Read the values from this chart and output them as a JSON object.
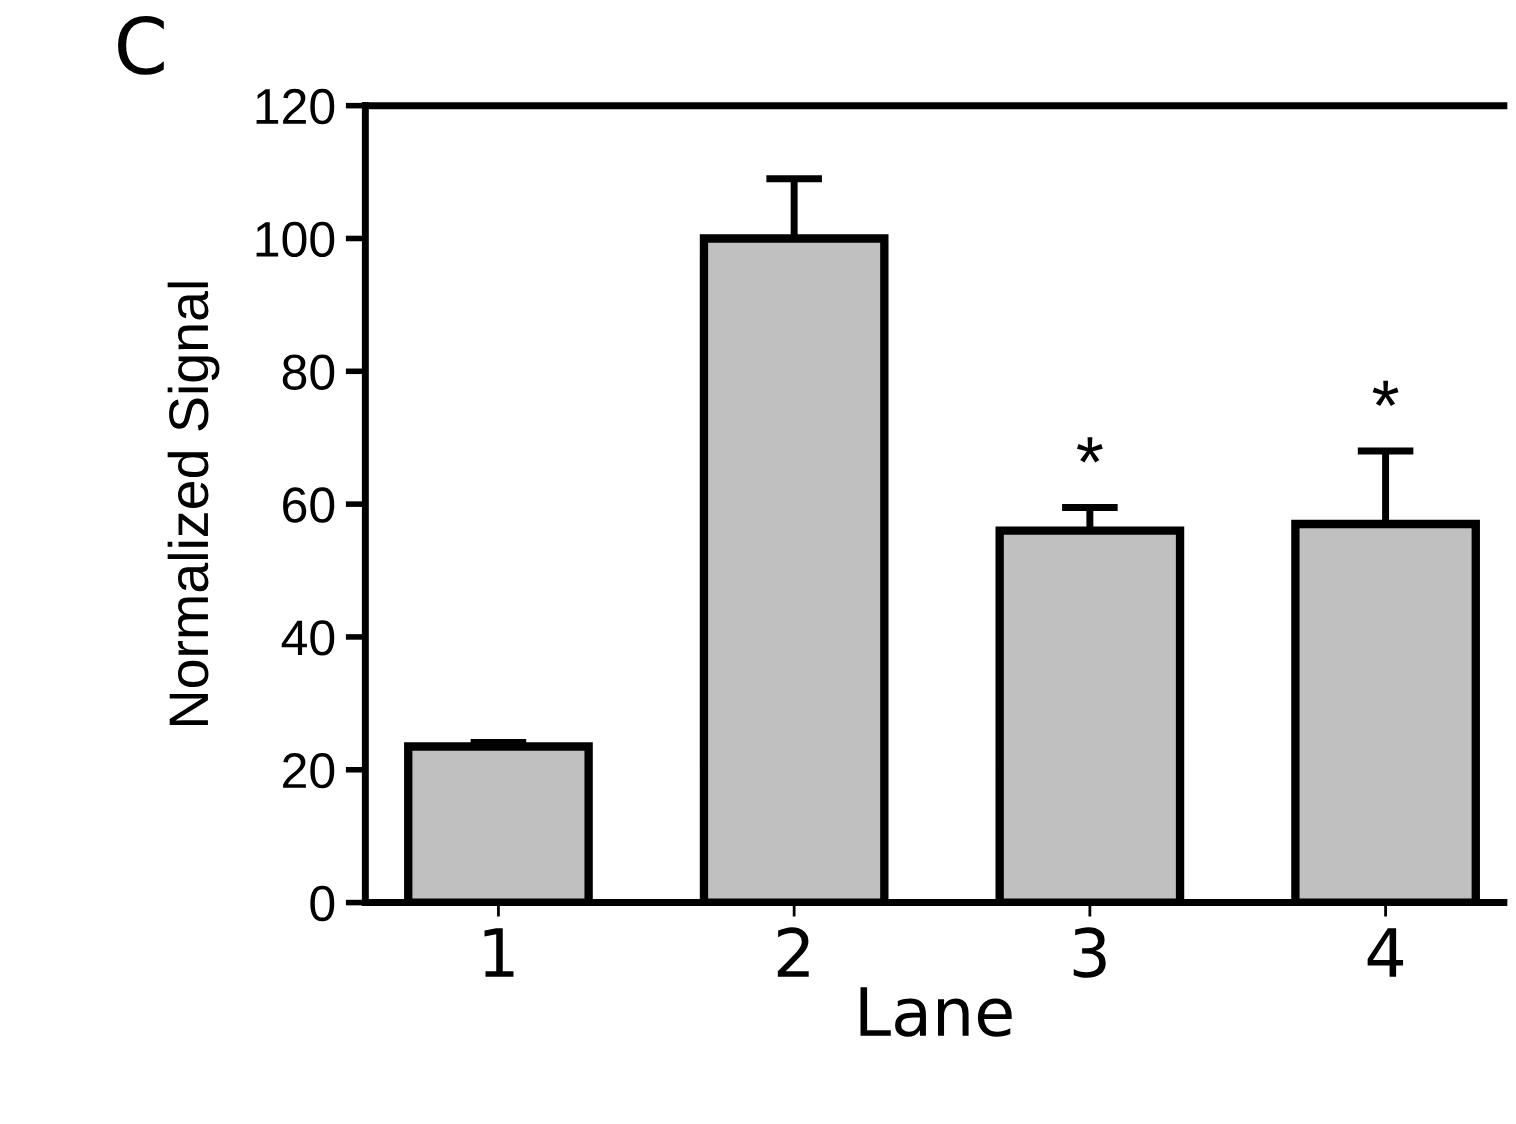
{
  "chart_data": {
    "type": "bar",
    "xlabel": "Lane",
    "ylabel": "Normalized Signal",
    "categories": [
      "1",
      "2",
      "3",
      "4"
    ],
    "series": [
      {
        "color": "#c0c0c0",
        "values": [
          23.5,
          100,
          56,
          57
        ],
        "errors": [
          [
            23.5,
            24.1
          ],
          [
            100,
            109
          ],
          [
            56,
            59.5
          ],
          [
            57,
            68
          ]
        ]
      }
    ],
    "ylim": [
      0,
      120
    ],
    "yticks": [
      0,
      20,
      40,
      60,
      80,
      100,
      120
    ],
    "grid": false,
    "legend": false,
    "annotations": [
      "C",
      {
        "text": "*",
        "x": "3",
        "y": 59.5
      },
      {
        "text": "*",
        "x": "4",
        "y": 68
      }
    ]
  }
}
